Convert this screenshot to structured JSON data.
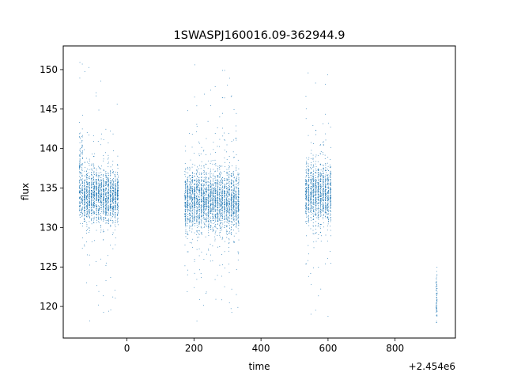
{
  "chart_data": {
    "type": "scatter",
    "title": "1SWASPJ160016.09-362944.9",
    "xlabel": "time",
    "ylabel": "flux",
    "x_offset_label": "+2.454e6",
    "xlim": [
      -190,
      980
    ],
    "ylim": [
      116,
      153
    ],
    "xticks": [
      0,
      200,
      400,
      600,
      800
    ],
    "xtick_labels": [
      "0",
      "200",
      "400",
      "600",
      "800"
    ],
    "yticks": [
      120,
      125,
      130,
      135,
      140,
      145,
      150
    ],
    "ytick_labels": [
      "120",
      "125",
      "130",
      "135",
      "140",
      "145",
      "150"
    ],
    "grid": false,
    "marker_color": "#1f77b4",
    "observing_seasons": [
      {
        "x_range": [
          -145,
          -25
        ],
        "y_typical": [
          130,
          138
        ],
        "y_extreme": [
          118,
          151
        ],
        "note": "densest at x≈-140 with flux up to ~143"
      },
      {
        "x_range": [
          170,
          335
        ],
        "y_typical": [
          129,
          138
        ],
        "y_extreme": [
          118,
          151
        ]
      },
      {
        "x_range": [
          530,
          610
        ],
        "y_typical": [
          130,
          139
        ],
        "y_extreme": [
          117,
          150
        ]
      },
      {
        "x_range": [
          920,
          926
        ],
        "y_typical": [
          118,
          125
        ],
        "y_extreme": [
          118,
          125
        ]
      }
    ]
  }
}
